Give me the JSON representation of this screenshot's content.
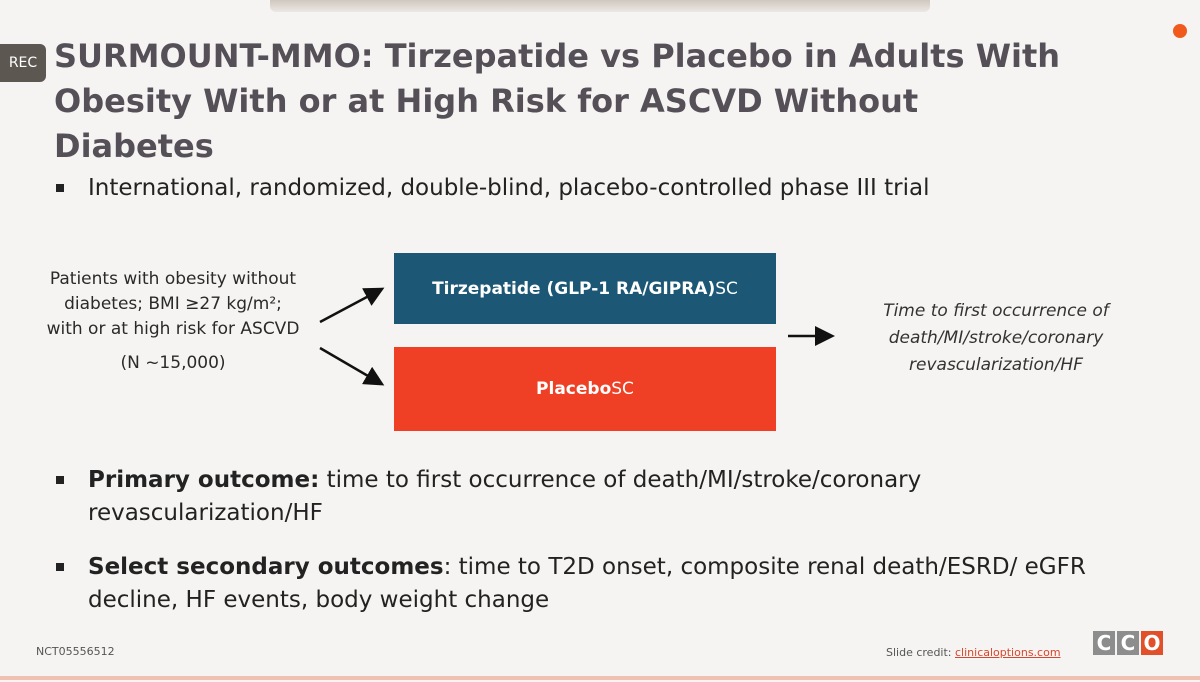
{
  "recording": {
    "badge": "REC"
  },
  "slide": {
    "title": "SURMOUNT-MMO: Tirzepatide vs Placebo in Adults With Obesity With or at High Risk for ASCVD Without Diabetes",
    "bullets": [
      {
        "bold": "",
        "text": "International, randomized, double-blind, placebo-controlled phase III trial"
      },
      {
        "bold": "Primary outcome:",
        "text": " time to first occurrence of death/MI/stroke/coronary revascularization/HF"
      },
      {
        "bold": "Select secondary outcomes",
        "text": ": time to T2D onset, composite renal death/ESRD/ eGFR decline, HF events, body weight change"
      }
    ],
    "population": {
      "text_html": "Patients with obesity without diabetes; BMI ≥27 kg/m²; with or at high risk for ASCVD",
      "n": "(N ~15,000)"
    },
    "arms": [
      {
        "name": "Tirzepatide (GLP-1 RA/GIPRA)",
        "route": " SC",
        "color": "#1c5875"
      },
      {
        "name": "Placebo",
        "route": " SC",
        "color": "#ef3f24"
      }
    ],
    "endpoint": "Time to first occurrence of death/MI/stroke/coronary revascularization/HF",
    "footer": {
      "trial_id": "NCT05556512",
      "credit_label": "Slide credit: ",
      "credit_link": "clinicaloptions.com",
      "logo_letters": [
        "C",
        "C",
        "O"
      ]
    }
  }
}
